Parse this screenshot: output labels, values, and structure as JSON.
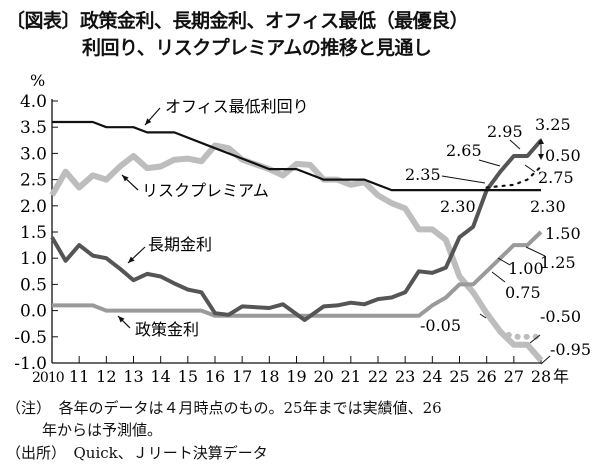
{
  "title_line1": "〔図表〕政策金利、長期金利、オフィス最低（最優良）",
  "title_line2": "利回り、リスクプレミアムの推移と見通し",
  "note_line1": "（注）　各年のデータは４月時点のもの。25年までは実績値、26",
  "note_line2": "年からは予測値。",
  "source": "（出所）　Quick、Ｊリート決算データ",
  "chart_data": {
    "type": "line",
    "ylabel": "%",
    "xlabel_unit": "年",
    "ylim": [
      -1.0,
      4.0
    ],
    "yticks": [
      "4.0",
      "3.5",
      "3.0",
      "2.5",
      "2.0",
      "1.5",
      "1.0",
      "0.5",
      "0.0",
      "-0.5",
      "-1.0"
    ],
    "xticks": [
      "2010",
      "11",
      "12",
      "13",
      "14",
      "15",
      "16",
      "17",
      "18",
      "19",
      "20",
      "21",
      "22",
      "23",
      "24",
      "25",
      "26",
      "27",
      "28"
    ],
    "xlim": [
      2010,
      2028
    ],
    "grid": false,
    "series": [
      {
        "name": "オフィス最低利回り",
        "color": "#111111",
        "x": [
          2010,
          2011,
          2011.5,
          2012,
          2013,
          2013.5,
          2014.5,
          2016,
          2017,
          2018,
          2019,
          2020,
          2021,
          2021.5,
          2022.5,
          2028
        ],
        "y": [
          3.6,
          3.6,
          3.6,
          3.5,
          3.5,
          3.4,
          3.4,
          3.1,
          2.9,
          2.7,
          2.7,
          2.5,
          2.5,
          2.5,
          2.3,
          2.3
        ]
      },
      {
        "name": "オフィス最低利回り（予測・点線）",
        "color": "#111111",
        "dashed": true,
        "x": [
          2026,
          2027,
          2027.5,
          2028
        ],
        "y": [
          2.35,
          2.4,
          2.5,
          2.75
        ]
      },
      {
        "name": "リスクプレミアム",
        "color": "#bdbdbd",
        "x": [
          2010,
          2010.5,
          2011,
          2011.5,
          2012,
          2012.5,
          2013,
          2013.5,
          2014,
          2014.5,
          2015,
          2015.5,
          2016,
          2016.5,
          2017,
          2018,
          2018.5,
          2019,
          2019.5,
          2020,
          2020.5,
          2021,
          2021.5,
          2022,
          2022.5,
          2023,
          2023.5,
          2024,
          2024.5,
          2025,
          2025.5,
          2026,
          2026.5,
          2027,
          2027.5,
          2028
        ],
        "y": [
          2.2,
          2.65,
          2.35,
          2.58,
          2.5,
          2.75,
          2.95,
          2.72,
          2.75,
          2.88,
          2.9,
          2.85,
          3.15,
          3.1,
          2.88,
          2.7,
          2.58,
          2.8,
          2.78,
          2.5,
          2.5,
          2.4,
          2.45,
          2.2,
          2.05,
          1.95,
          1.55,
          1.55,
          1.35,
          0.65,
          0.35,
          -0.05,
          -0.4,
          -0.65,
          -0.65,
          -0.95
        ]
      },
      {
        "name": "リスクプレミアム（予測・点線）",
        "color": "#bdbdbd",
        "dashed": true,
        "x": [
          2026.5,
          2027,
          2027.5,
          2028
        ],
        "y": [
          -0.4,
          -0.5,
          -0.5,
          -0.5
        ]
      },
      {
        "name": "長期金利",
        "color": "#555555",
        "x": [
          2010,
          2010.5,
          2011,
          2011.5,
          2012,
          2012.5,
          2013,
          2013.5,
          2014,
          2014.5,
          2015,
          2015.5,
          2016,
          2016.5,
          2017,
          2018,
          2018.5,
          2019.3,
          2020,
          2020.5,
          2021,
          2021.5,
          2022,
          2022.5,
          2023,
          2023.5,
          2024,
          2024.5,
          2025,
          2025.5,
          2026,
          2026.5,
          2027,
          2027.5,
          2028
        ],
        "y": [
          1.4,
          0.95,
          1.25,
          1.05,
          1.0,
          0.8,
          0.58,
          0.7,
          0.65,
          0.52,
          0.4,
          0.35,
          -0.05,
          -0.08,
          0.08,
          0.05,
          0.12,
          -0.18,
          0.08,
          0.1,
          0.15,
          0.12,
          0.22,
          0.25,
          0.35,
          0.75,
          0.72,
          0.82,
          1.4,
          1.6,
          2.3,
          2.65,
          2.95,
          2.95,
          3.25
        ]
      },
      {
        "name": "政策金利",
        "color": "#9a9a9a",
        "x": [
          2010,
          2011.5,
          2012,
          2015.5,
          2016,
          2023.5,
          2024,
          2024.5,
          2025,
          2025.5,
          2026,
          2026.5,
          2027,
          2027.5,
          2028
        ],
        "y": [
          0.1,
          0.1,
          0.0,
          0.0,
          -0.1,
          -0.1,
          0.1,
          0.25,
          0.5,
          0.5,
          0.75,
          1.0,
          1.25,
          1.25,
          1.5
        ]
      }
    ],
    "annotations": [
      "3.25",
      "2.95",
      "2.65",
      "0.50",
      "2.75",
      "2.35",
      "2.30",
      "2.30",
      "1.50",
      "1.25",
      "1.00",
      "0.75",
      "-0.05",
      "-0.50",
      "-0.95"
    ]
  }
}
